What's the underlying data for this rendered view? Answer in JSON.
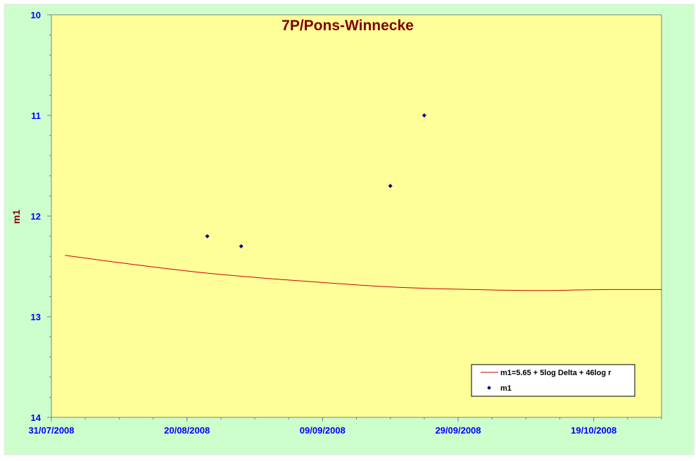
{
  "chart_data": {
    "type": "scatter",
    "title": "7P/Pons-Winnecke",
    "xlabel": "",
    "ylabel": "m1",
    "x_tick_labels": [
      "31/07/2008",
      "20/08/2008",
      "09/09/2008",
      "29/09/2008",
      "19/10/2008"
    ],
    "x_ticks": [
      "2008-07-31",
      "2008-08-20",
      "2008-09-09",
      "2008-09-29",
      "2008-10-19"
    ],
    "xlim": [
      "2008-07-31",
      "2008-10-29"
    ],
    "y_tick_labels": [
      "10",
      "11",
      "12",
      "13",
      "14"
    ],
    "ylim": [
      10,
      14
    ],
    "y_inverted": true,
    "grid": false,
    "legend_position": "bottom-right",
    "series": [
      {
        "name": "m1=5.65 + 5log Delta + 46log r",
        "type": "line",
        "color": "#cc0000",
        "points": [
          {
            "x": "2008-08-02",
            "y": 12.39
          },
          {
            "x": "2008-08-12",
            "y": 12.48
          },
          {
            "x": "2008-08-22",
            "y": 12.56
          },
          {
            "x": "2008-09-01",
            "y": 12.62
          },
          {
            "x": "2008-09-11",
            "y": 12.67
          },
          {
            "x": "2008-09-21",
            "y": 12.71
          },
          {
            "x": "2008-10-01",
            "y": 12.73
          },
          {
            "x": "2008-10-11",
            "y": 12.74
          },
          {
            "x": "2008-10-21",
            "y": 12.73
          },
          {
            "x": "2008-10-29",
            "y": 12.73
          }
        ]
      },
      {
        "name": "m1",
        "type": "scatter",
        "color": "#000080",
        "points": [
          {
            "x": "2008-08-23",
            "y": 12.2
          },
          {
            "x": "2008-08-28",
            "y": 12.3
          },
          {
            "x": "2008-09-19",
            "y": 11.7
          },
          {
            "x": "2008-09-24",
            "y": 11.0
          }
        ]
      }
    ],
    "colors": {
      "background": "#ccffcc",
      "plot_area": "#ffff99",
      "title": "#800000",
      "ylabel": "#800000",
      "tick_labels": "#0000ff"
    }
  }
}
